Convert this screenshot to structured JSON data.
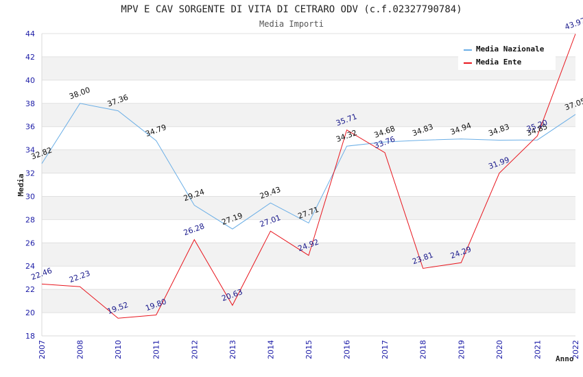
{
  "chart_data": {
    "type": "line",
    "title": "MPV E CAV SORGENTE DI VITA DI CETRARO ODV (c.f.02327790784)",
    "subtitle": "Media Importi",
    "xlabel": "Anno",
    "ylabel": "Media",
    "ylim": [
      18,
      44
    ],
    "yticks": [
      "18",
      "20",
      "22",
      "24",
      "26",
      "28",
      "30",
      "32",
      "34",
      "36",
      "38",
      "40",
      "42",
      "44"
    ],
    "categories": [
      "2007",
      "2008",
      "2010",
      "2011",
      "2012",
      "2013",
      "2014",
      "2015",
      "2016",
      "2017",
      "2018",
      "2019",
      "2020",
      "2021",
      "2022"
    ],
    "grid": "horizontal-bands",
    "legend_position": "top-right",
    "series": [
      {
        "name": "Media Nazionale",
        "color": "#6aaee6",
        "values": [
          32.82,
          38.0,
          37.36,
          34.79,
          29.24,
          27.19,
          29.43,
          27.71,
          34.32,
          34.68,
          34.83,
          34.94,
          34.83,
          34.85,
          37.05
        ],
        "labels": [
          "32.82",
          "38.00",
          "37.36",
          "34.79",
          "29.24",
          "27.19",
          "29.43",
          "27.71",
          "34.32",
          "34.68",
          "34.83",
          "34.94",
          "34.83",
          "34.85",
          "37.05"
        ]
      },
      {
        "name": "Media Ente",
        "color": "#e8141c",
        "values": [
          22.46,
          22.23,
          19.52,
          19.8,
          26.28,
          20.63,
          27.01,
          24.92,
          35.71,
          33.76,
          23.81,
          24.29,
          31.99,
          35.2,
          43.97
        ],
        "labels": [
          "22.46",
          "22.23",
          "19.52",
          "19.80",
          "26.28",
          "20.63",
          "27.01",
          "24.92",
          "35.71",
          "33.76",
          "23.81",
          "24.29",
          "31.99",
          "35.20",
          "43.97"
        ]
      }
    ]
  }
}
